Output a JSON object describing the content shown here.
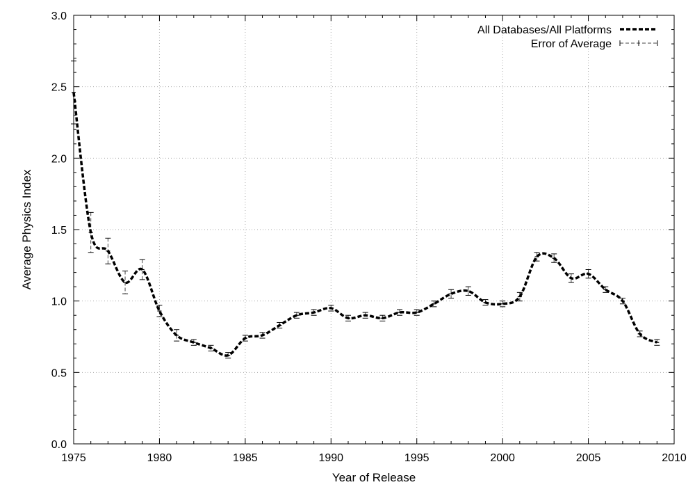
{
  "chart_data": {
    "type": "line",
    "title": "",
    "xlabel": "Year of Release",
    "ylabel": "Average Physics Index",
    "xlim": [
      1975,
      2010
    ],
    "ylim": [
      0.0,
      3.0
    ],
    "xticks": [
      "1975",
      "1980",
      "1985",
      "1990",
      "1995",
      "2000",
      "2005",
      "2010"
    ],
    "yticks": [
      "0.0",
      "0.5",
      "1.0",
      "1.5",
      "2.0",
      "2.5",
      "3.0"
    ],
    "grid": true,
    "legend_position": "top-right",
    "legend": [
      "All Databases/All Platforms",
      "Error of Average"
    ],
    "series": [
      {
        "name": "All Databases/All Platforms",
        "x": [
          1975,
          1976,
          1977,
          1978,
          1979,
          1980,
          1981,
          1982,
          1983,
          1984,
          1985,
          1986,
          1987,
          1988,
          1989,
          1990,
          1991,
          1992,
          1993,
          1994,
          1995,
          1996,
          1997,
          1998,
          1999,
          2000,
          2001,
          2002,
          2003,
          2004,
          2005,
          2006,
          2007,
          2008,
          2009
        ],
        "y": [
          2.46,
          1.48,
          1.35,
          1.13,
          1.22,
          0.93,
          0.76,
          0.71,
          0.67,
          0.62,
          0.74,
          0.76,
          0.83,
          0.9,
          0.92,
          0.95,
          0.88,
          0.9,
          0.88,
          0.92,
          0.92,
          0.98,
          1.05,
          1.07,
          0.99,
          0.98,
          1.03,
          1.31,
          1.3,
          1.16,
          1.19,
          1.08,
          1.0,
          0.77,
          0.71
        ],
        "err": [
          0.22,
          0.14,
          0.09,
          0.08,
          0.07,
          0.04,
          0.04,
          0.02,
          0.02,
          0.02,
          0.02,
          0.02,
          0.02,
          0.02,
          0.02,
          0.02,
          0.02,
          0.02,
          0.02,
          0.02,
          0.02,
          0.02,
          0.03,
          0.03,
          0.02,
          0.02,
          0.03,
          0.03,
          0.03,
          0.03,
          0.03,
          0.02,
          0.02,
          0.02,
          0.02
        ]
      }
    ]
  }
}
